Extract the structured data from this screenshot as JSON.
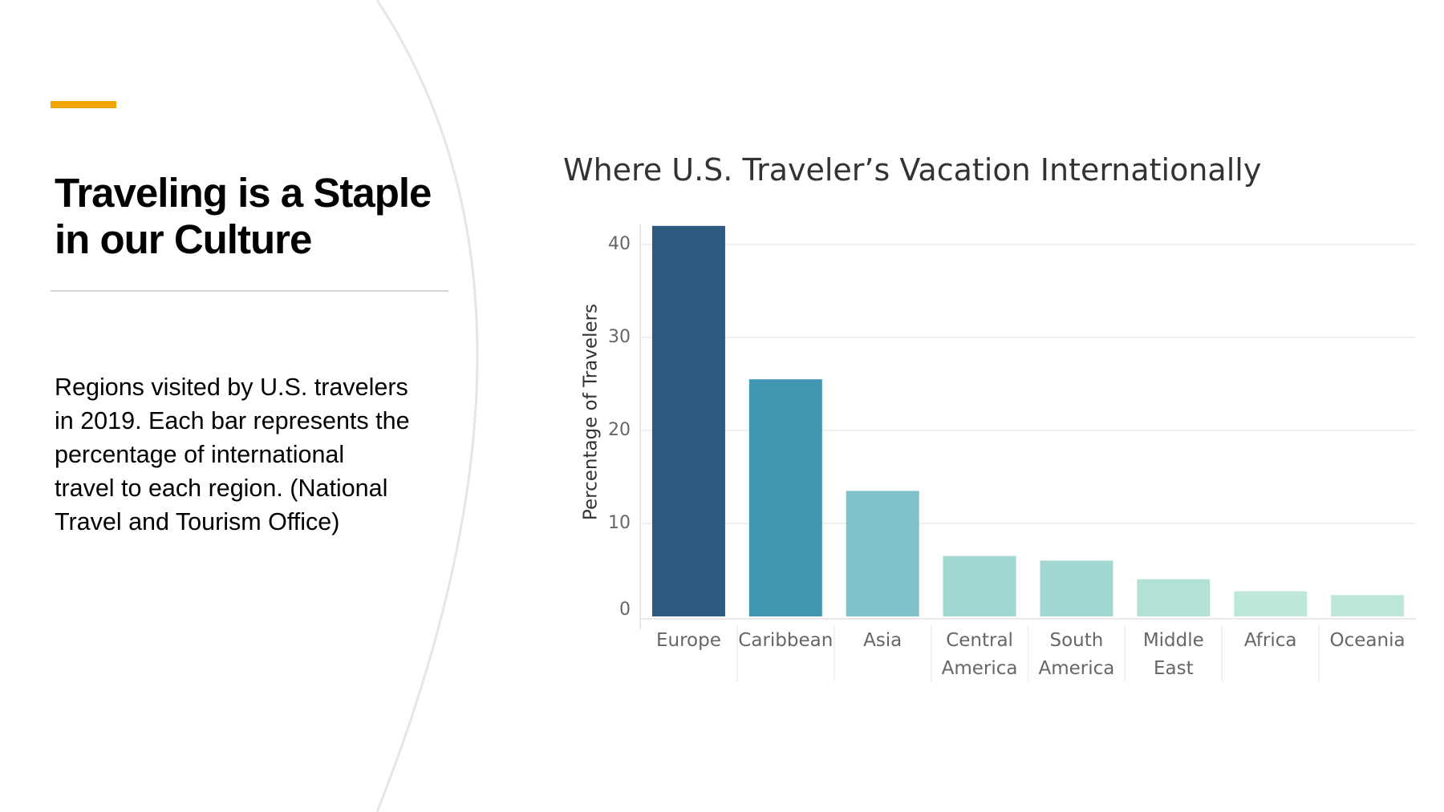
{
  "slide": {
    "title_lines": [
      "Traveling is a Staple",
      "in our Culture"
    ],
    "description_lines": [
      "Regions visited by U.S. travelers",
      "in 2019. Each bar represents the",
      "percentage of international",
      "travel to each region. (National",
      "Travel and Tourism Office)"
    ],
    "accent_color": "#f0a500"
  },
  "chart_data": {
    "type": "bar",
    "title": "Where U.S. Traveler’s Vacation Internationally",
    "xlabel": "",
    "ylabel": "Percentage of Travelers",
    "ylim": [
      0,
      42
    ],
    "yticks": [
      0,
      10,
      20,
      30,
      40
    ],
    "grid": true,
    "categories": [
      [
        "Europe"
      ],
      [
        "Caribbean"
      ],
      [
        "Asia"
      ],
      [
        "Central",
        "America"
      ],
      [
        "South",
        "America"
      ],
      [
        "Middle",
        "East"
      ],
      [
        "Africa"
      ],
      [
        "Oceania"
      ]
    ],
    "values": [
      42,
      25.5,
      13.5,
      6.5,
      6,
      4,
      2.7,
      2.3
    ],
    "colors": [
      "#2e5a82",
      "#4196b2",
      "#7fc1c8",
      "#a3d8d2",
      "#a3d8d2",
      "#b3e1d6",
      "#bce7da",
      "#bce7da"
    ]
  }
}
